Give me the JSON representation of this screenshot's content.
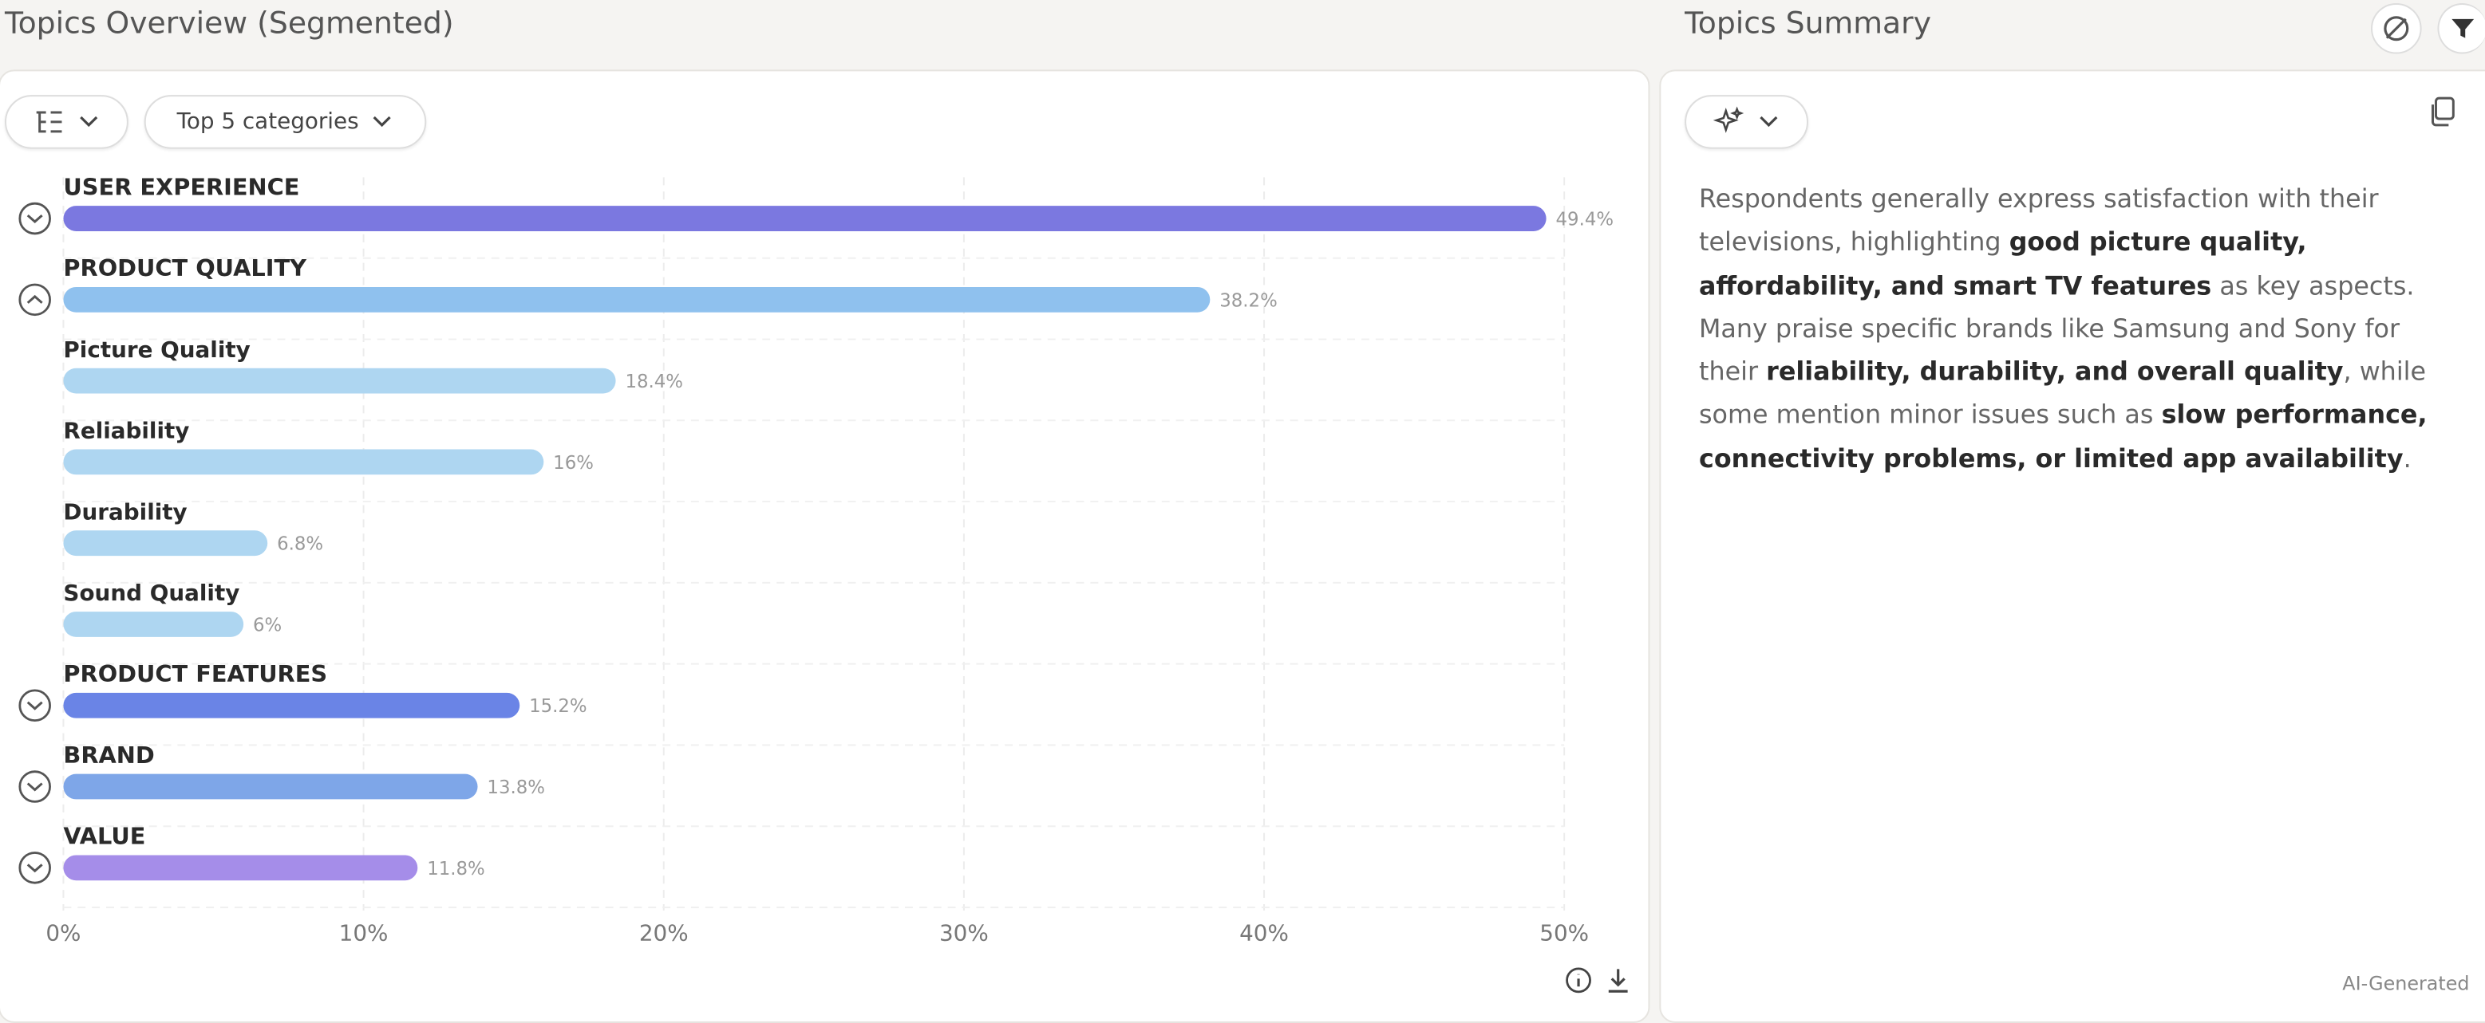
{
  "header": {
    "left_title": "Topics Overview (Segmented)",
    "right_title": "Topics Summary"
  },
  "controls": {
    "category_filter": "Top 5 categories"
  },
  "chart_data": {
    "type": "bar",
    "orientation": "horizontal",
    "categories": [
      "USER EXPERIENCE",
      "PRODUCT QUALITY",
      "Picture Quality",
      "Reliability",
      "Durability",
      "Sound Quality",
      "PRODUCT FEATURES",
      "BRAND",
      "VALUE"
    ],
    "values": [
      49.4,
      38.2,
      18.4,
      16,
      6.8,
      6,
      15.2,
      13.8,
      11.8
    ],
    "value_labels": [
      "49.4%",
      "38.2%",
      "18.4%",
      "16%",
      "6.8%",
      "6%",
      "15.2%",
      "13.8%",
      "11.8%"
    ],
    "colors": [
      "#7b78e0",
      "#8fc1ee",
      "#aed6f1",
      "#aed6f1",
      "#aed6f1",
      "#aed6f1",
      "#6a84e6",
      "#7ea6e8",
      "#a58de9"
    ],
    "xlim": [
      0,
      50
    ],
    "xticks": [
      {
        "value": 0,
        "label": "0%"
      },
      {
        "value": 10,
        "label": "10%"
      },
      {
        "value": 20,
        "label": "20%"
      },
      {
        "value": 30,
        "label": "30%"
      },
      {
        "value": 40,
        "label": "40%"
      },
      {
        "value": 50,
        "label": "50%"
      }
    ],
    "grid": true
  },
  "summary": {
    "segments": [
      {
        "text": "Respondents generally express satisfaction with their televisions, highlighting ",
        "bold": false
      },
      {
        "text": "good picture quality, affordability, and smart TV features",
        "bold": true
      },
      {
        "text": " as key aspects. Many praise specific brands like Samsung and Sony for their ",
        "bold": false
      },
      {
        "text": "reliability, durability, and overall quality",
        "bold": true
      },
      {
        "text": ", while some mention minor issues such as ",
        "bold": false
      },
      {
        "text": "slow performance, connectivity problems, or limited app availability",
        "bold": true
      },
      {
        "text": ".",
        "bold": false
      }
    ],
    "footer": "AI-Generated"
  }
}
